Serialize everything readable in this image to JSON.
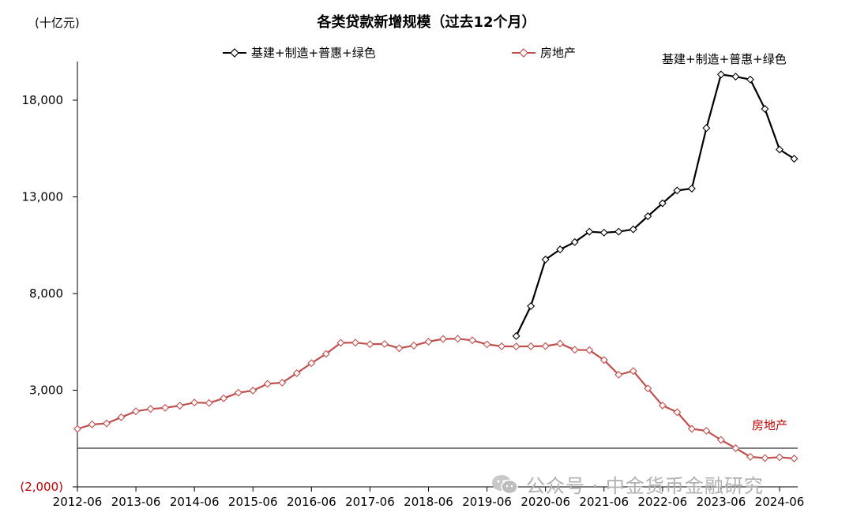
{
  "unit_label": "(十亿元)",
  "colors": {
    "infra": "#000000",
    "property": "#c0504d",
    "negative_tick": "#c00000"
  },
  "watermark": {
    "icon": "wechat-icon",
    "text": "公众号 · 中金货币金融研究"
  },
  "chart_data": {
    "type": "line",
    "title": "各类贷款新增规模（过去12个月）",
    "xlabel": "",
    "ylabel": "",
    "ylim": [
      -2000,
      20000
    ],
    "yticks": [
      -2000,
      3000,
      8000,
      13000,
      18000
    ],
    "ytick_labels": [
      "(2,000)",
      "3,000",
      "8,000",
      "13,000",
      "18,000"
    ],
    "x_tick_labels": [
      "2012-06",
      "2013-06",
      "2014-06",
      "2015-06",
      "2016-06",
      "2017-06",
      "2018-06",
      "2019-06",
      "2020-06",
      "2021-06",
      "2022-06",
      "2023-06",
      "2024-06"
    ],
    "x_start": "2012-06",
    "x_step": "quarter",
    "grid": false,
    "legend_position": "top",
    "series": [
      {
        "name": "基建+制造+普惠+绿色",
        "end_label": "基建+制造+普惠+绿色",
        "start_date": "2019-12",
        "values": [
          5800,
          7350,
          9760,
          10280,
          10660,
          11200,
          11150,
          11200,
          11320,
          12000,
          12670,
          13330,
          13430,
          16560,
          19330,
          19220,
          19070,
          17550,
          15450,
          14970
        ]
      },
      {
        "name": "房地产",
        "end_label": "房地产",
        "start_date": "2012-06",
        "values": [
          1000,
          1230,
          1280,
          1600,
          1910,
          2030,
          2090,
          2200,
          2360,
          2340,
          2580,
          2870,
          2980,
          3330,
          3390,
          3880,
          4400,
          4880,
          5450,
          5460,
          5380,
          5390,
          5170,
          5310,
          5510,
          5650,
          5660,
          5580,
          5370,
          5270,
          5260,
          5270,
          5280,
          5410,
          5090,
          5070,
          4560,
          3800,
          3990,
          3090,
          2210,
          1860,
          1000,
          900,
          430,
          0,
          -450,
          -510,
          -470,
          -530
        ]
      }
    ]
  }
}
